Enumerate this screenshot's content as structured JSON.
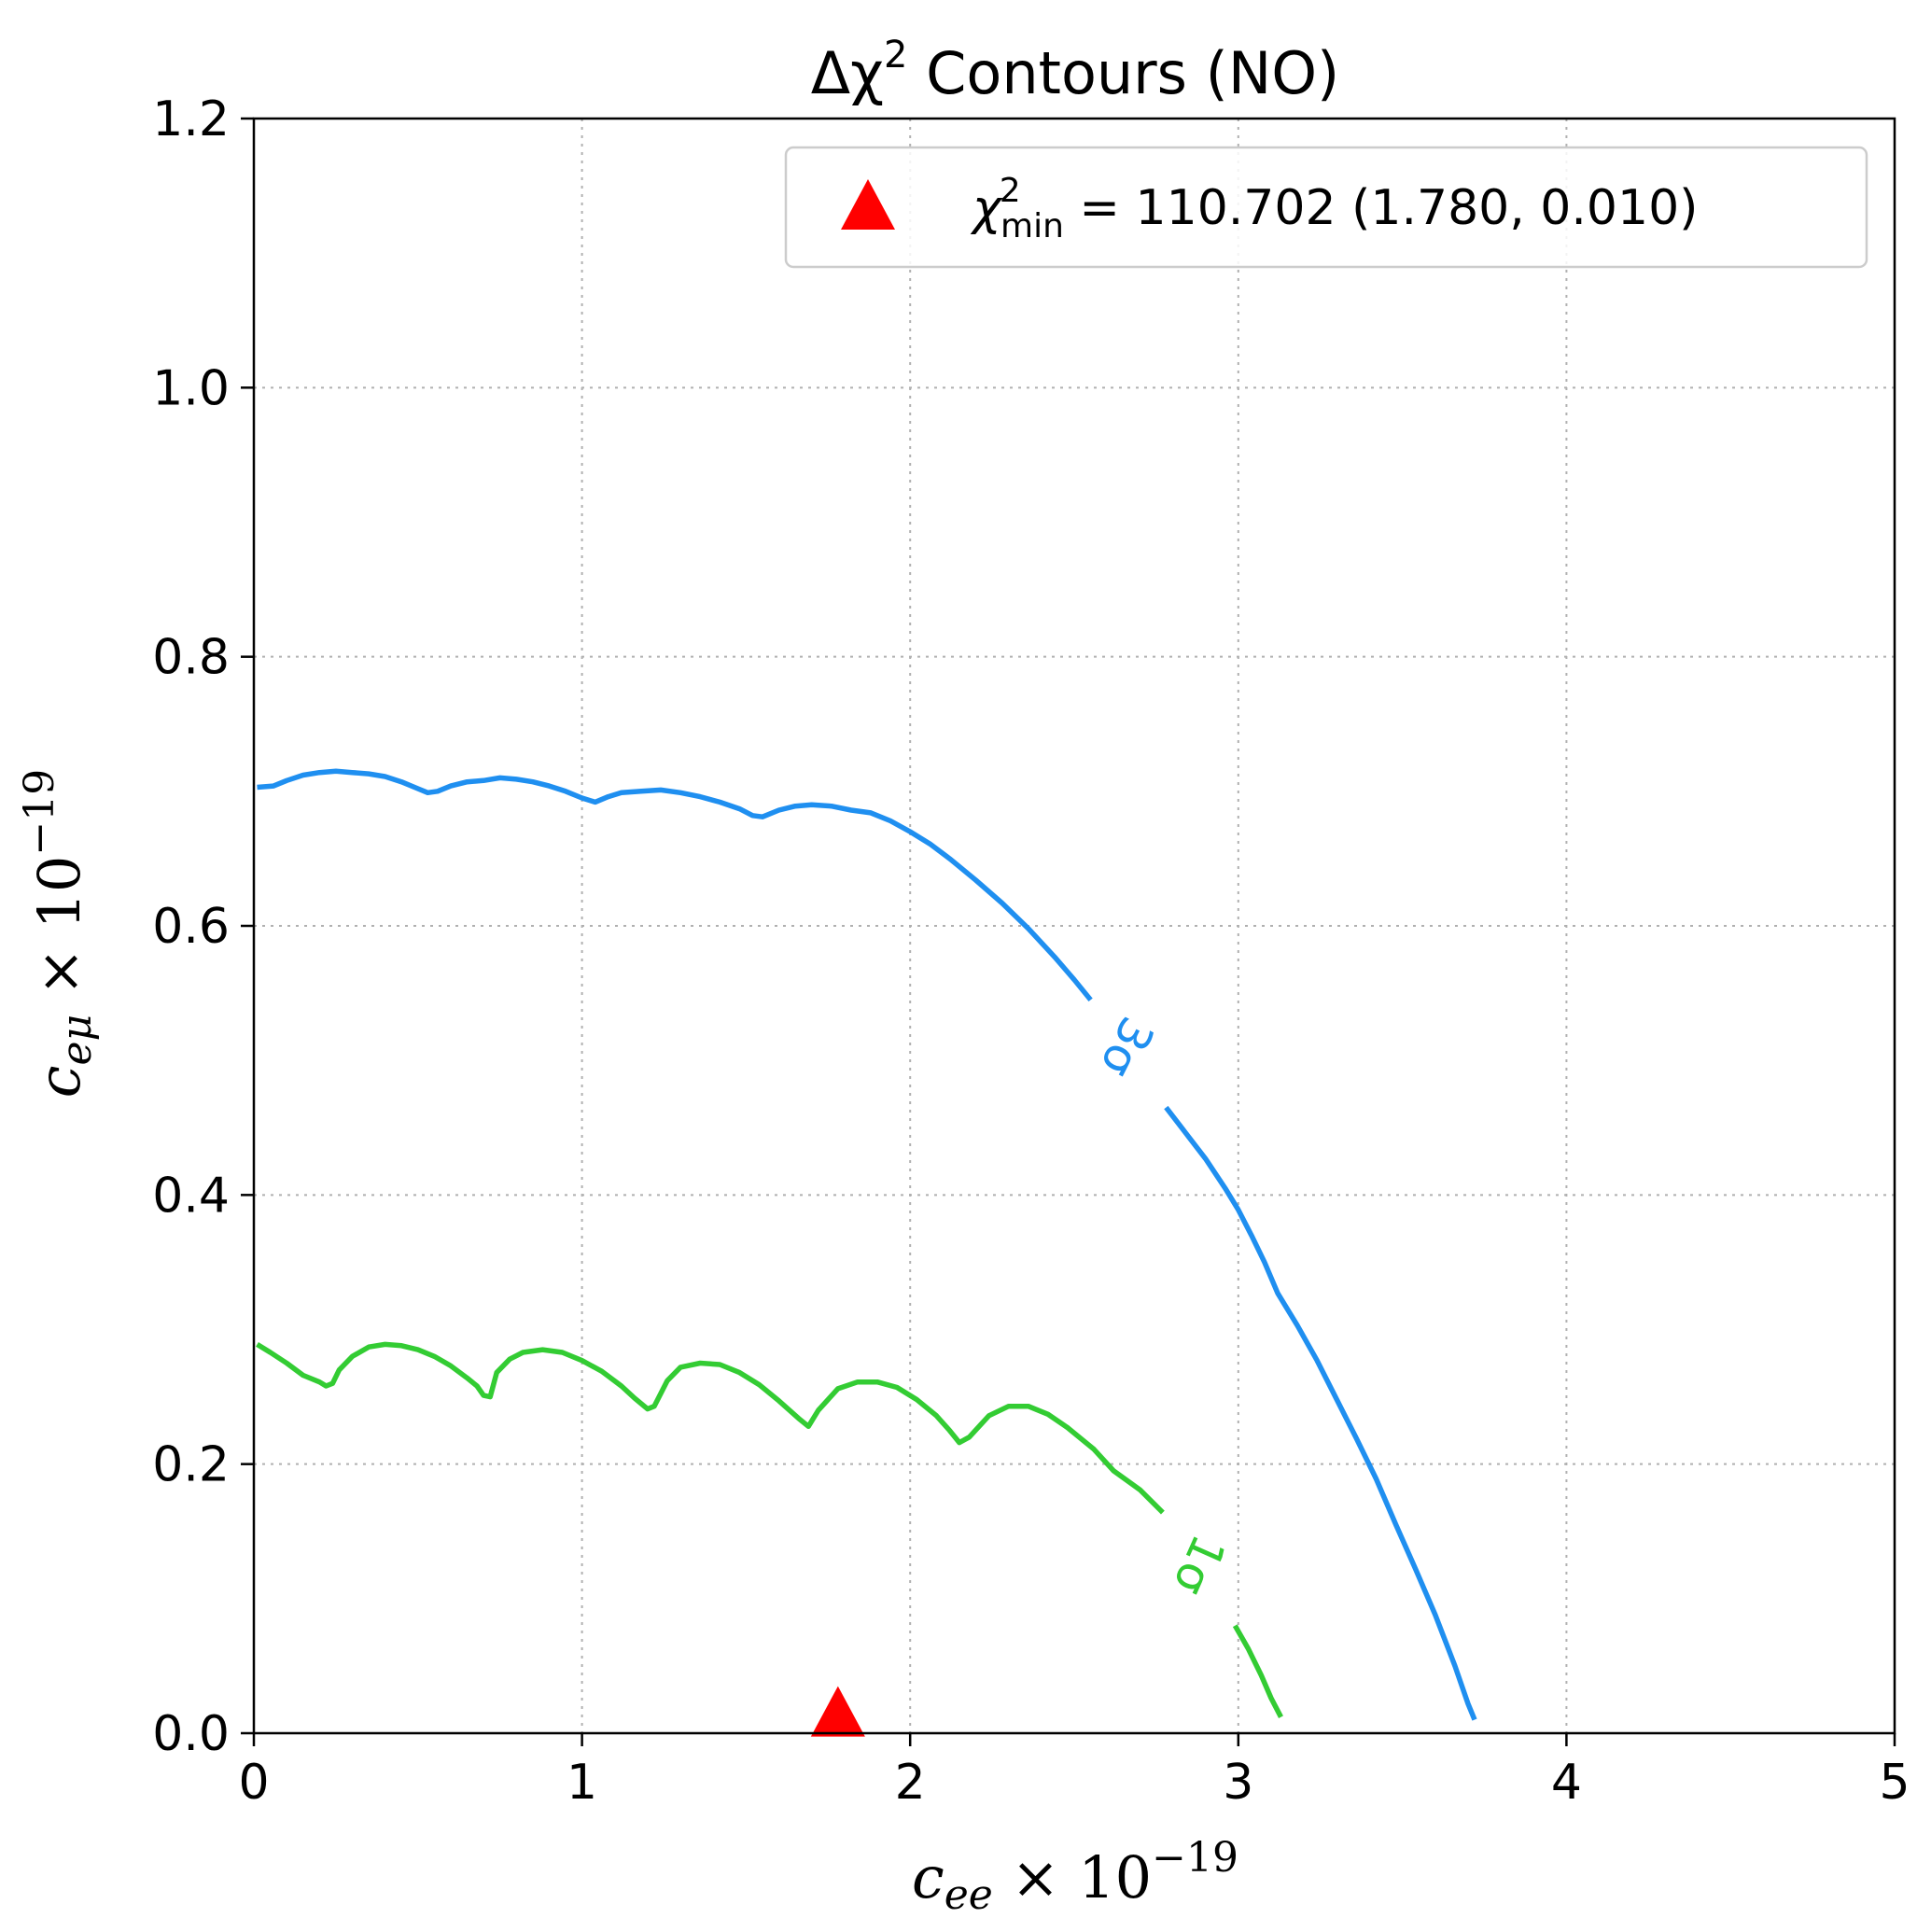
{
  "chart_data": {
    "type": "line",
    "title": "Δχ² Contours (NO)",
    "title_parts": {
      "main": "Δχ",
      "sup": "2",
      "rest": " Contours (NO)"
    },
    "xlabel_parts": {
      "var": "c",
      "sub": "ee",
      "times": " × 10",
      "sup": "−19"
    },
    "ylabel_parts": {
      "var": "c",
      "sub": "eμ",
      "times": " × 10",
      "sup": "−19"
    },
    "xlim": [
      0,
      5
    ],
    "ylim": [
      0,
      1.2
    ],
    "x_ticks": [
      0,
      1,
      2,
      3,
      4,
      5
    ],
    "x_tick_labels": [
      "0",
      "1",
      "2",
      "3",
      "4",
      "5"
    ],
    "y_ticks": [
      0.0,
      0.2,
      0.4,
      0.6,
      0.8,
      1.0,
      1.2
    ],
    "y_tick_labels": [
      "0.0",
      "0.2",
      "0.4",
      "0.6",
      "0.8",
      "1.0",
      "1.2"
    ],
    "grid": true,
    "legend_position": "top-right",
    "legend": {
      "label_parts": {
        "var": "χ",
        "sup": "2",
        "sub": "min",
        "rest": " = 110.702 (1.780, 0.010)"
      }
    },
    "best_fit": {
      "x": 1.78,
      "y": 0.01,
      "marker": "triangle",
      "color": "#ff0000"
    },
    "series": [
      {
        "label": "3σ",
        "color": "#1f8ff0",
        "label_at": {
          "x": 2.66,
          "y": 0.51
        },
        "label_rotation": -63,
        "segments": [
          [
            [
              0.01,
              0.703
            ],
            [
              0.06,
              0.704
            ],
            [
              0.1,
              0.708
            ],
            [
              0.15,
              0.712
            ],
            [
              0.2,
              0.714
            ],
            [
              0.25,
              0.715
            ],
            [
              0.3,
              0.714
            ],
            [
              0.35,
              0.713
            ],
            [
              0.4,
              0.711
            ],
            [
              0.45,
              0.707
            ],
            [
              0.5,
              0.702
            ],
            [
              0.53,
              0.699
            ],
            [
              0.56,
              0.7
            ],
            [
              0.6,
              0.704
            ],
            [
              0.65,
              0.707
            ],
            [
              0.7,
              0.708
            ],
            [
              0.75,
              0.71
            ],
            [
              0.8,
              0.709
            ],
            [
              0.85,
              0.707
            ],
            [
              0.9,
              0.704
            ],
            [
              0.95,
              0.7
            ],
            [
              1.0,
              0.695
            ],
            [
              1.04,
              0.692
            ],
            [
              1.08,
              0.696
            ],
            [
              1.12,
              0.699
            ],
            [
              1.18,
              0.7
            ],
            [
              1.24,
              0.701
            ],
            [
              1.3,
              0.699
            ],
            [
              1.36,
              0.696
            ],
            [
              1.42,
              0.692
            ],
            [
              1.48,
              0.687
            ],
            [
              1.52,
              0.682
            ],
            [
              1.55,
              0.681
            ],
            [
              1.6,
              0.686
            ],
            [
              1.65,
              0.689
            ],
            [
              1.7,
              0.69
            ],
            [
              1.76,
              0.689
            ],
            [
              1.82,
              0.686
            ],
            [
              1.88,
              0.684
            ],
            [
              1.94,
              0.678
            ],
            [
              2.0,
              0.67
            ],
            [
              2.06,
              0.661
            ],
            [
              2.12,
              0.65
            ],
            [
              2.2,
              0.634
            ],
            [
              2.28,
              0.617
            ],
            [
              2.36,
              0.598
            ],
            [
              2.44,
              0.577
            ],
            [
              2.5,
              0.56
            ],
            [
              2.55,
              0.545
            ]
          ],
          [
            [
              2.78,
              0.465
            ],
            [
              2.84,
              0.446
            ],
            [
              2.9,
              0.427
            ],
            [
              2.96,
              0.405
            ],
            [
              3.0,
              0.389
            ],
            [
              3.04,
              0.37
            ],
            [
              3.08,
              0.35
            ],
            [
              3.12,
              0.327
            ],
            [
              3.18,
              0.303
            ],
            [
              3.24,
              0.277
            ],
            [
              3.3,
              0.248
            ],
            [
              3.36,
              0.219
            ],
            [
              3.42,
              0.189
            ],
            [
              3.48,
              0.155
            ],
            [
              3.54,
              0.122
            ],
            [
              3.6,
              0.088
            ],
            [
              3.66,
              0.05
            ],
            [
              3.7,
              0.022
            ],
            [
              3.72,
              0.01
            ]
          ]
        ]
      },
      {
        "label": "1σ",
        "color": "#33cc33",
        "label_at": {
          "x": 2.88,
          "y": 0.125
        },
        "label_rotation": -66,
        "segments": [
          [
            [
              0.01,
              0.289
            ],
            [
              0.05,
              0.283
            ],
            [
              0.1,
              0.275
            ],
            [
              0.15,
              0.266
            ],
            [
              0.2,
              0.261
            ],
            [
              0.22,
              0.258
            ],
            [
              0.24,
              0.26
            ],
            [
              0.26,
              0.27
            ],
            [
              0.3,
              0.28
            ],
            [
              0.35,
              0.287
            ],
            [
              0.4,
              0.289
            ],
            [
              0.45,
              0.288
            ],
            [
              0.5,
              0.285
            ],
            [
              0.55,
              0.28
            ],
            [
              0.6,
              0.273
            ],
            [
              0.65,
              0.264
            ],
            [
              0.68,
              0.258
            ],
            [
              0.7,
              0.251
            ],
            [
              0.72,
              0.25
            ],
            [
              0.74,
              0.268
            ],
            [
              0.78,
              0.278
            ],
            [
              0.82,
              0.283
            ],
            [
              0.88,
              0.285
            ],
            [
              0.94,
              0.283
            ],
            [
              1.0,
              0.277
            ],
            [
              1.06,
              0.269
            ],
            [
              1.12,
              0.258
            ],
            [
              1.16,
              0.249
            ],
            [
              1.2,
              0.241
            ],
            [
              1.22,
              0.243
            ],
            [
              1.26,
              0.262
            ],
            [
              1.3,
              0.272
            ],
            [
              1.36,
              0.275
            ],
            [
              1.42,
              0.274
            ],
            [
              1.48,
              0.268
            ],
            [
              1.54,
              0.259
            ],
            [
              1.6,
              0.247
            ],
            [
              1.66,
              0.234
            ],
            [
              1.69,
              0.228
            ],
            [
              1.72,
              0.24
            ],
            [
              1.78,
              0.256
            ],
            [
              1.84,
              0.261
            ],
            [
              1.9,
              0.261
            ],
            [
              1.96,
              0.257
            ],
            [
              2.02,
              0.248
            ],
            [
              2.08,
              0.236
            ],
            [
              2.12,
              0.225
            ],
            [
              2.15,
              0.216
            ],
            [
              2.18,
              0.22
            ],
            [
              2.24,
              0.236
            ],
            [
              2.3,
              0.243
            ],
            [
              2.36,
              0.243
            ],
            [
              2.42,
              0.237
            ],
            [
              2.48,
              0.227
            ],
            [
              2.56,
              0.211
            ],
            [
              2.62,
              0.195
            ],
            [
              2.7,
              0.181
            ],
            [
              2.77,
              0.164
            ]
          ],
          [
            [
              2.99,
              0.08
            ],
            [
              3.03,
              0.063
            ],
            [
              3.07,
              0.043
            ],
            [
              3.1,
              0.026
            ],
            [
              3.13,
              0.012
            ]
          ]
        ]
      }
    ]
  }
}
